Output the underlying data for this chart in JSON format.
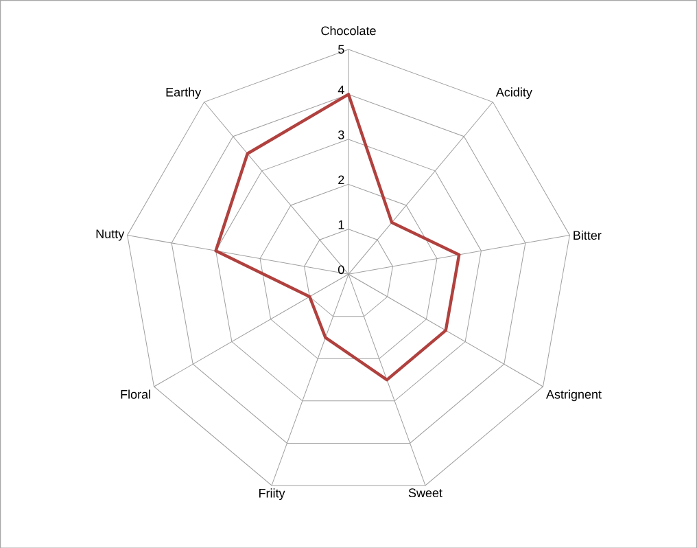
{
  "chart_data": {
    "type": "radar",
    "categories": [
      "Chocolate",
      "Acidity",
      "Bitter",
      "Astrignent",
      "Sweet",
      "Friity",
      "Floral",
      "Nutty",
      "Earthy"
    ],
    "series": [
      {
        "color": "#b0413e",
        "values": [
          4,
          1.5,
          2.5,
          2.5,
          2.5,
          1.5,
          1,
          3,
          3.5
        ]
      }
    ],
    "ylim": [
      0,
      5
    ],
    "yticks": [
      0,
      1,
      2,
      3,
      4,
      5
    ],
    "grid": true
  }
}
